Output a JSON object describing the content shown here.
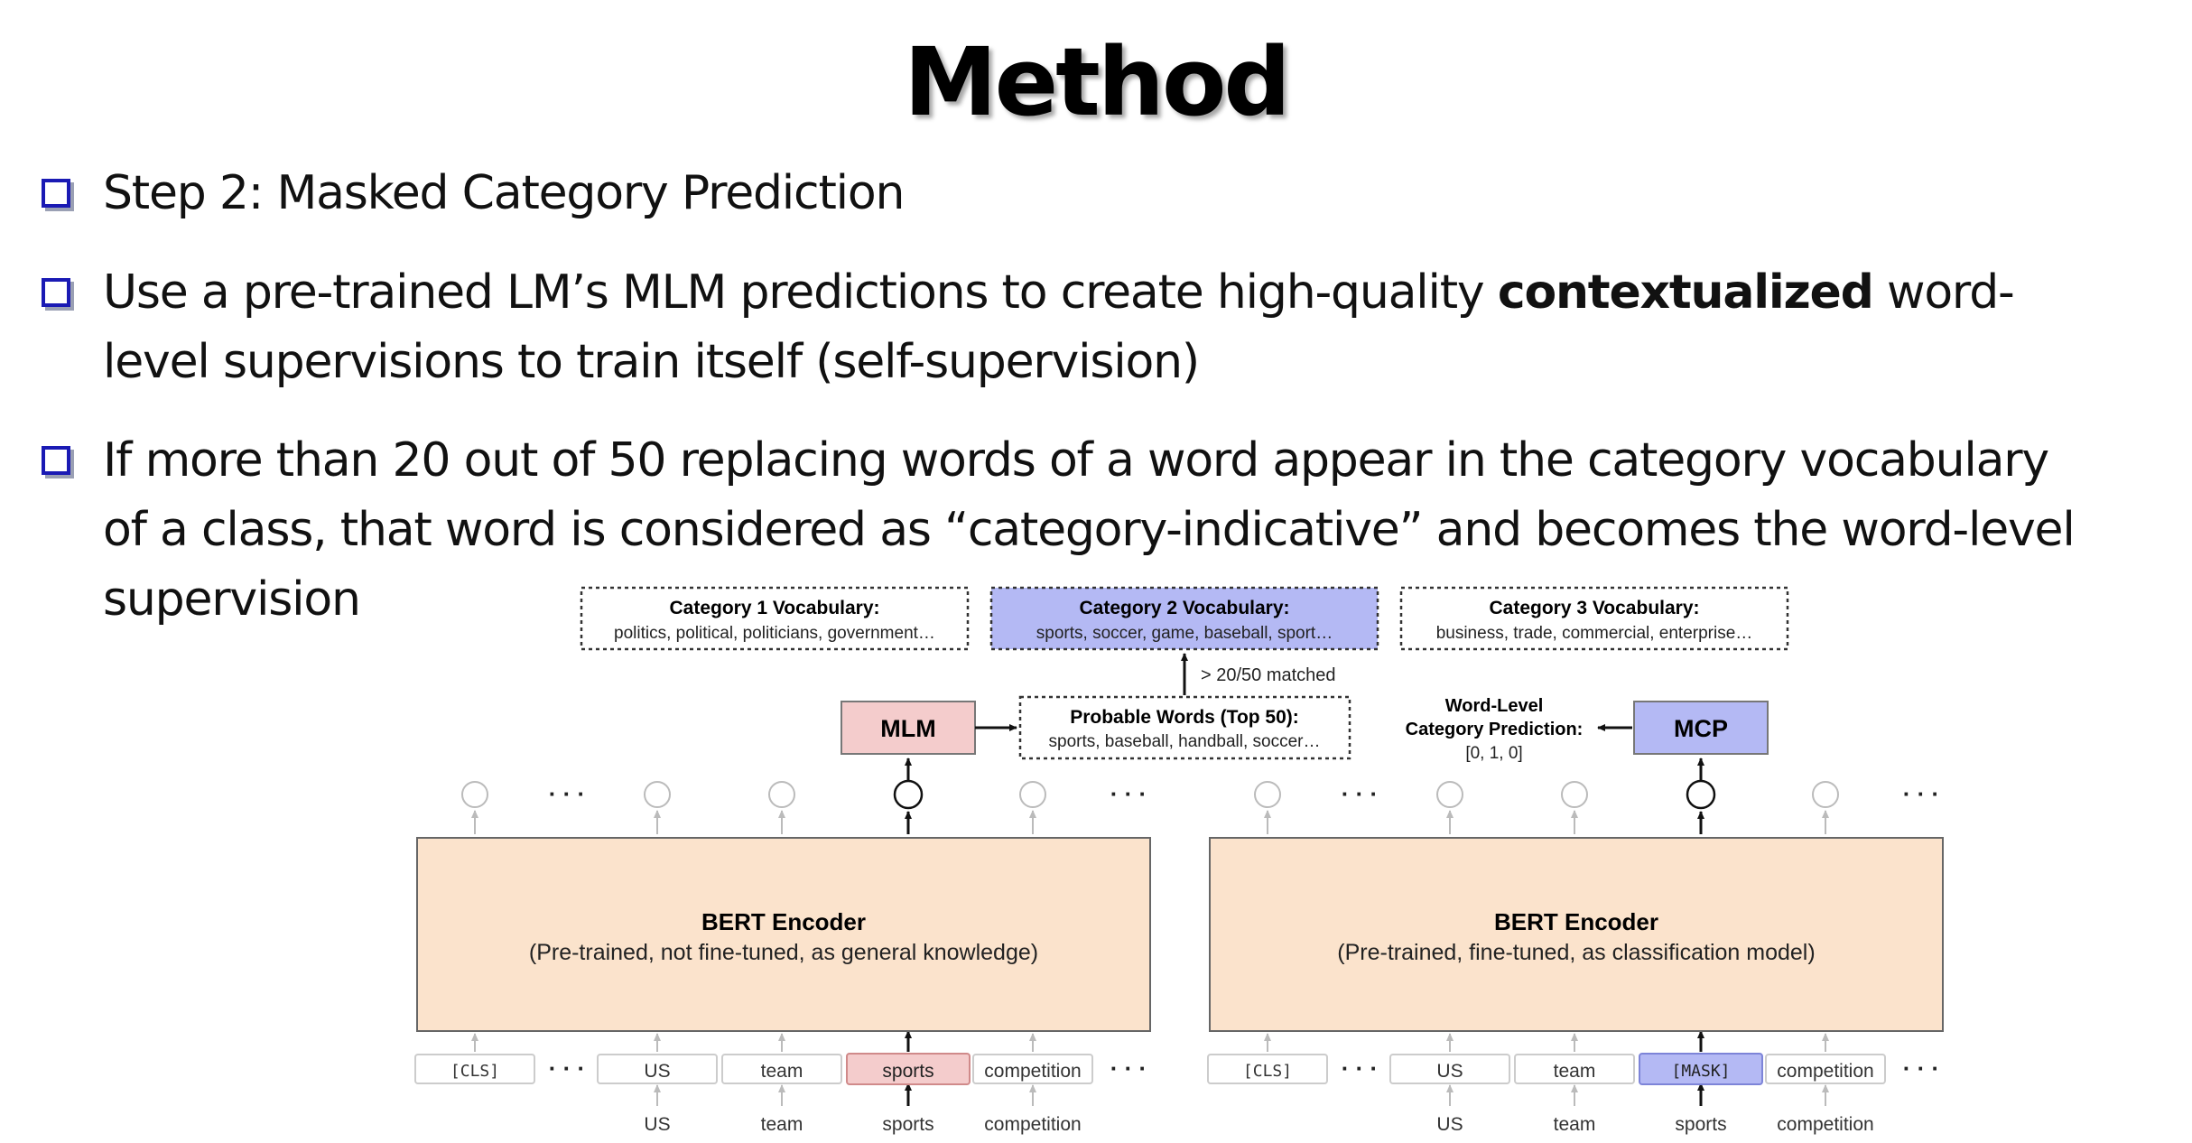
{
  "slide": {
    "title": "Method",
    "bullets": [
      {
        "text": "Step 2: Masked Category Prediction"
      },
      {
        "before": "Use a pre-trained LM’s MLM predictions to create high-quality ",
        "bold": "contextualized",
        "after_line1": " word-",
        "line2": "level supervisions to train itself (self-supervision)"
      },
      {
        "line1": "If more than 20 out of 50 replacing words of a word appear in the category vocabulary",
        "line2": "of a class, that word is considered as “category-indicative” and becomes the word-level",
        "line3": "supervision"
      }
    ]
  },
  "diagram": {
    "vocab": [
      {
        "title": "Category 1 Vocabulary:",
        "words": "politics, political, politicians, government…"
      },
      {
        "title": "Category 2 Vocabulary:",
        "words": "sports, soccer, game, baseball, sport…"
      },
      {
        "title": "Category 3 Vocabulary:",
        "words": "business, trade, commercial, enterprise…"
      }
    ],
    "matched_label": "> 20/50 matched",
    "mlm_label": "MLM",
    "mcp_label": "MCP",
    "probable": {
      "title": "Probable Words (Top 50):",
      "words": "sports, baseball, handball, soccer…"
    },
    "word_level": {
      "line1": "Word-Level",
      "line2": "Category Prediction:",
      "line3": "[0, 1, 0]"
    },
    "ellipsis": "· · ·",
    "left_encoder": {
      "title": "BERT Encoder",
      "subtitle": "(Pre-trained, not fine-tuned, as general knowledge)"
    },
    "right_encoder": {
      "title": "BERT Encoder",
      "subtitle": "(Pre-trained, fine-tuned, as classification model)"
    },
    "left_tokens": [
      "[CLS]",
      "US",
      "team",
      "sports",
      "competition"
    ],
    "right_tokens": [
      "[CLS]",
      "US",
      "team",
      "[MASK]",
      "competition"
    ],
    "input_words": [
      "US",
      "team",
      "sports",
      "competition"
    ],
    "colors": {
      "encoder_fill": "#fbe3cc",
      "mlm_fill": "#f4cccc",
      "mcp_fill": "#b4b9f4",
      "vocab2_fill": "#b4b9f4",
      "bullet_color": "#1a1ab4"
    }
  }
}
